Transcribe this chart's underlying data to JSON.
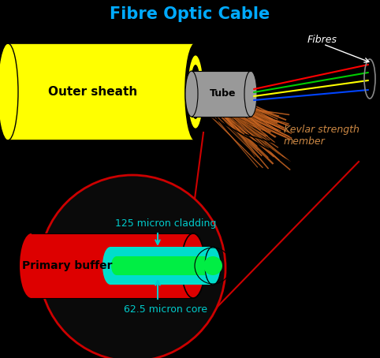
{
  "title": "Fibre Optic Cable",
  "title_color": "#00aaff",
  "background_color": "#000000",
  "outer_sheath_color": "#ffff00",
  "tube_color": "#999999",
  "kevlar_color": "#cc6622",
  "kevlar_dark": "#884411",
  "primary_buffer_color": "#dd0000",
  "cladding_color": "#00ddcc",
  "core_color": "#00ee44",
  "fiber_red": "#ff0000",
  "fiber_green": "#00cc00",
  "fiber_yellow": "#ffff00",
  "fiber_blue": "#0044ff",
  "annotation_color": "#00cccc",
  "kevlar_annotation_color": "#cc8844",
  "fibres_annotation_color": "#ffffff",
  "zoom_circle_color": "#cc0000",
  "outer_sheath_label": "Outer sheath",
  "tube_label": "Tube",
  "primary_buffer_label": "Primary buffer",
  "cladding_label": "125 micron cladding",
  "core_label": "62.5 micron core",
  "kevlar_label": "Kevlar strength\nmember",
  "fibres_label": "Fibres",
  "figw": 4.82,
  "figh": 4.54,
  "dpi": 100
}
